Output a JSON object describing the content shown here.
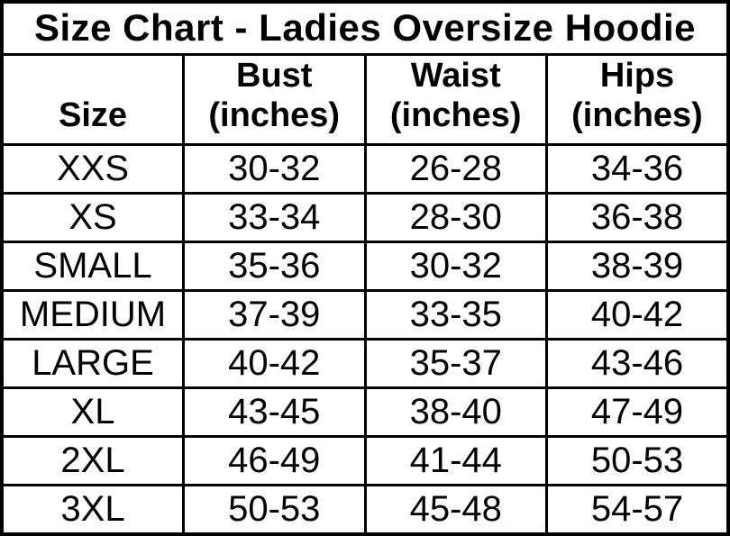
{
  "title": "Size Chart - Ladies Oversize Hoodie",
  "colors": {
    "text": "#000000",
    "border": "#000000",
    "background": "#ffffff"
  },
  "columns": [
    {
      "label": "Size",
      "sub": ""
    },
    {
      "label": "Bust",
      "sub": "(inches)"
    },
    {
      "label": "Waist",
      "sub": "(inches)"
    },
    {
      "label": "Hips",
      "sub": "(inches)"
    }
  ],
  "chart_data": {
    "type": "table",
    "title": "Size Chart - Ladies Oversize Hoodie",
    "columns": [
      "Size",
      "Bust (inches)",
      "Waist (inches)",
      "Hips (inches)"
    ],
    "rows": [
      [
        "XXS",
        "30-32",
        "26-28",
        "34-36"
      ],
      [
        "XS",
        "33-34",
        "28-30",
        "36-38"
      ],
      [
        "SMALL",
        "35-36",
        "30-32",
        "38-39"
      ],
      [
        "MEDIUM",
        "37-39",
        "33-35",
        "40-42"
      ],
      [
        "LARGE",
        "40-42",
        "35-37",
        "43-46"
      ],
      [
        "XL",
        "43-45",
        "38-40",
        "47-49"
      ],
      [
        "2XL",
        "46-49",
        "41-44",
        "50-53"
      ],
      [
        "3XL",
        "50-53",
        "45-48",
        "54-57"
      ]
    ]
  }
}
